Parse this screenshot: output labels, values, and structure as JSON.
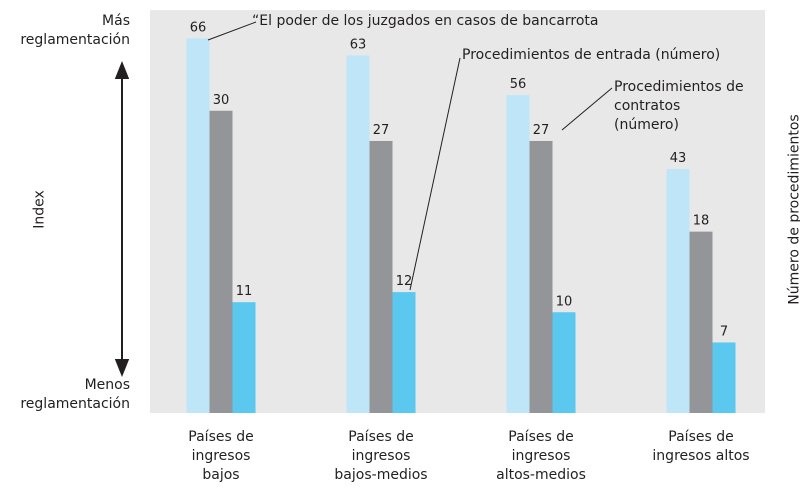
{
  "chart_data": {
    "type": "bar",
    "ylabel": "Index",
    "y2label": "Número de procedimientos",
    "axis_ends": {
      "top": "Más reglamentación",
      "bottom": "Menos reglamentación"
    },
    "categories": [
      "Países de ingresos bajos",
      "Países de ingresos bajos-medios",
      "Países de ingresos altos-medios",
      "Países de ingresos altos"
    ],
    "series": [
      {
        "name": "“El poder de los juzgados en casos de bancarrota",
        "color": "#bfe6f8",
        "axis": "y",
        "values": [
          66,
          63,
          56,
          43
        ]
      },
      {
        "name": "Procedimientos de contratos (número)",
        "color": "#939598",
        "axis": "y2",
        "values": [
          30,
          27,
          27,
          18
        ]
      },
      {
        "name": "Procedimientos de entrada (número)",
        "color": "#5bc8f0",
        "axis": "y2",
        "values": [
          11,
          12,
          10,
          7
        ]
      }
    ],
    "ylim": [
      0,
      71
    ],
    "y2lim": [
      0,
      40
    ]
  }
}
